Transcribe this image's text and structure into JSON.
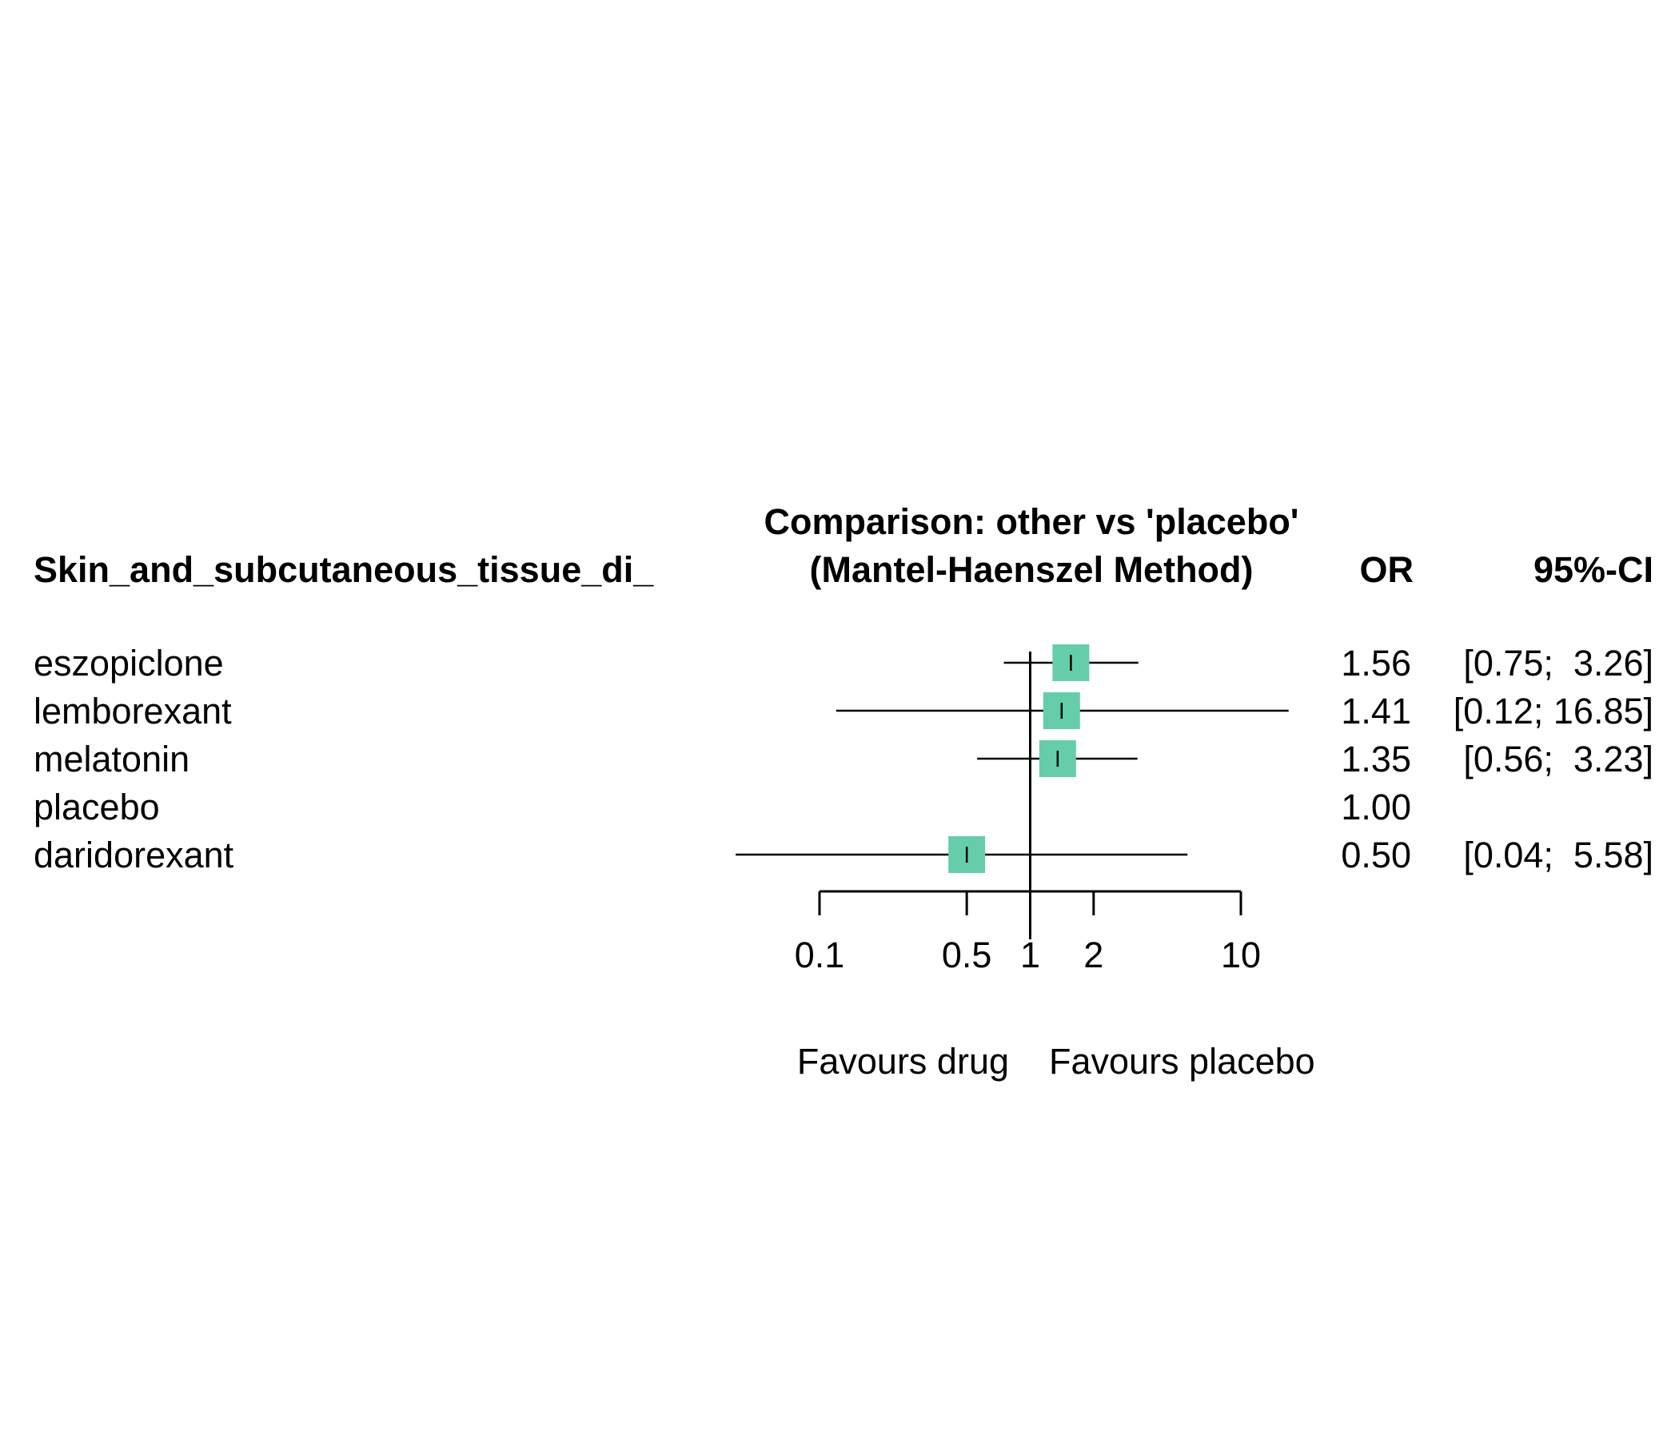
{
  "chart_data": {
    "type": "forest",
    "title": "Comparison: other vs 'placebo'",
    "subtitle": "(Mantel-Haenszel Method)",
    "column_headers": {
      "study": "Skin_and_subcutaneous_tissue_di_",
      "estimate": "OR",
      "ci": "95%-CI"
    },
    "rows": [
      {
        "label": "eszopiclone",
        "or": 1.56,
        "lower": 0.75,
        "upper": 3.26,
        "or_text": "1.56",
        "ci_text": "[0.75;  3.26]"
      },
      {
        "label": "lemborexant",
        "or": 1.41,
        "lower": 0.12,
        "upper": 16.85,
        "or_text": "1.41",
        "ci_text": "[0.12; 16.85]"
      },
      {
        "label": "melatonin",
        "or": 1.35,
        "lower": 0.56,
        "upper": 3.23,
        "or_text": "1.35",
        "ci_text": "[0.56;  3.23]"
      },
      {
        "label": "placebo",
        "or": 1.0,
        "lower": null,
        "upper": null,
        "or_text": "1.00",
        "ci_text": ""
      },
      {
        "label": "daridorexant",
        "or": 0.5,
        "lower": 0.04,
        "upper": 5.58,
        "or_text": "0.50",
        "ci_text": "[0.04;  5.58]"
      }
    ],
    "x_scale": "log",
    "x_ticks": [
      0.1,
      0.5,
      1,
      2,
      10
    ],
    "x_tick_labels": [
      "0.1",
      "0.5",
      "1",
      "2",
      "10"
    ],
    "xlim": [
      0.1,
      10
    ],
    "reference_line": 1,
    "left_favours": "Favours drug",
    "right_favours": "Favours placebo",
    "marker_color": "#66CDAA",
    "line_color": "#000000"
  }
}
